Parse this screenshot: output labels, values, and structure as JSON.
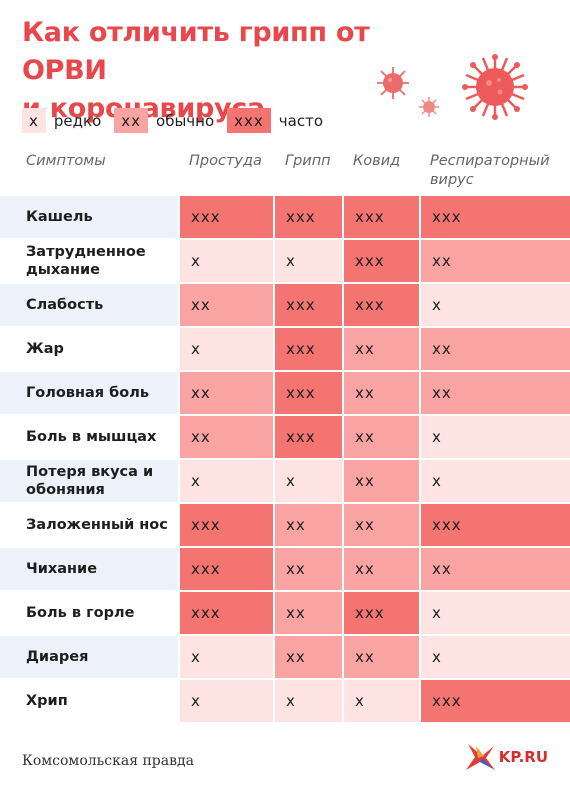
{
  "title": {
    "line1": "Как отличить грипп от ОРВИ",
    "line2": "и коронавируса"
  },
  "legend": [
    {
      "mark": "x",
      "label": "редко",
      "level": 1
    },
    {
      "mark": "xx",
      "label": "обычно",
      "level": 2
    },
    {
      "mark": "xxx",
      "label": "часто",
      "level": 3
    }
  ],
  "headers": {
    "symptoms": "Симптомы",
    "cold": "Простуда",
    "flu": "Грипп",
    "covid": "Ковид",
    "resp": "Респираторный вирус"
  },
  "colors": {
    "level1": "#fde4e2",
    "level2": "#f9a4a2",
    "level3": "#f37470",
    "accent": "#e8474b",
    "symBandA": "#edf1f9",
    "symBandB": "#ffffff"
  },
  "rows": [
    {
      "symptom": "Кашель",
      "cells": [
        "xxx",
        "xxx",
        "xxx",
        "xxx"
      ]
    },
    {
      "symptom": "Затрудненное дыхание",
      "cells": [
        "x",
        "x",
        "xxx",
        "xx"
      ]
    },
    {
      "symptom": "Слабость",
      "cells": [
        "xx",
        "xxx",
        "xxx",
        "x"
      ]
    },
    {
      "symptom": "Жар",
      "cells": [
        "x",
        "xxx",
        "xx",
        "xx"
      ]
    },
    {
      "symptom": "Головная боль",
      "cells": [
        "xx",
        "xxx",
        "xx",
        "xx"
      ]
    },
    {
      "symptom": "Боль в мышцах",
      "cells": [
        "xx",
        "xxx",
        "xx",
        "x"
      ]
    },
    {
      "symptom": "Потеря вкуса и обоняния",
      "cells": [
        "x",
        "x",
        "xx",
        "x"
      ]
    },
    {
      "symptom": "Заложенный нос",
      "cells": [
        "xxx",
        "xx",
        "xx",
        "xxx"
      ]
    },
    {
      "symptom": "Чихание",
      "cells": [
        "xxx",
        "xx",
        "xx",
        "xx"
      ]
    },
    {
      "symptom": "Боль в горле",
      "cells": [
        "xxx",
        "xx",
        "xxx",
        "x"
      ]
    },
    {
      "symptom": "Диарея",
      "cells": [
        "x",
        "xx",
        "xx",
        "x"
      ]
    },
    {
      "symptom": "Хрип",
      "cells": [
        "x",
        "x",
        "x",
        "xxx"
      ]
    }
  ],
  "footer": {
    "source": "Комсомольская правда",
    "logo": "KP.RU"
  }
}
